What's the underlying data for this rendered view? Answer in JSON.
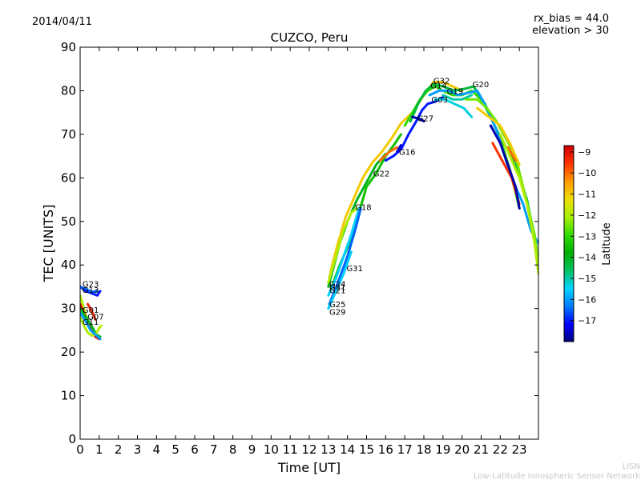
{
  "header": {
    "date": "2014/04/11",
    "rx_bias": "rx_bias = 44.0",
    "elevation": "elevation > 30"
  },
  "footer": {
    "org_short": "LISN",
    "org_long": "Low-Latitude Ionospheric Sensor Network"
  },
  "chart_data": {
    "type": "scatter",
    "title": "CUZCO, Peru",
    "xlabel": "Time [UT]",
    "ylabel": "TEC [UNITS]",
    "xlim": [
      0,
      24
    ],
    "ylim": [
      0,
      90
    ],
    "xticks": [
      "0",
      "1",
      "2",
      "3",
      "4",
      "5",
      "6",
      "7",
      "8",
      "9",
      "10",
      "11",
      "12",
      "13",
      "14",
      "15",
      "16",
      "17",
      "18",
      "19",
      "20",
      "21",
      "22",
      "23"
    ],
    "yticks": [
      "0",
      "10",
      "20",
      "30",
      "40",
      "50",
      "60",
      "70",
      "80",
      "90"
    ],
    "colorbar": {
      "label": "Latitude",
      "range": [
        -18,
        -8.7
      ],
      "ticks": [
        "−9",
        "−10",
        "−11",
        "−12",
        "−13",
        "−14",
        "−15",
        "−16",
        "−17"
      ],
      "colors": [
        "#00007f",
        "#0000ff",
        "#007fff",
        "#00d4ff",
        "#00c060",
        "#00b000",
        "#33dd00",
        "#aaee00",
        "#eedd00",
        "#ff9900",
        "#ff3300",
        "#cc0000"
      ]
    },
    "tracks": [
      {
        "points": [
          [
            0.0,
            35
          ],
          [
            0.3,
            34
          ],
          [
            0.6,
            33.5
          ],
          [
            0.9,
            33
          ],
          [
            1.05,
            34
          ]
        ],
        "lat": -17
      },
      {
        "points": [
          [
            0.0,
            35
          ],
          [
            0.3,
            34.5
          ],
          [
            0.6,
            33.8
          ],
          [
            0.9,
            34
          ]
        ],
        "lat": -16.5
      },
      {
        "points": [
          [
            0.0,
            33
          ],
          [
            0.2,
            30
          ],
          [
            0.4,
            27
          ],
          [
            0.6,
            25
          ],
          [
            0.8,
            24
          ],
          [
            1.0,
            23.5
          ]
        ],
        "lat": -12
      },
      {
        "points": [
          [
            0.0,
            31
          ],
          [
            0.2,
            29
          ],
          [
            0.4,
            27
          ],
          [
            0.6,
            25
          ],
          [
            0.8,
            23.5
          ],
          [
            1.0,
            23
          ]
        ],
        "lat": -9
      },
      {
        "points": [
          [
            0.0,
            30
          ],
          [
            0.3,
            28
          ],
          [
            0.6,
            26
          ],
          [
            0.85,
            24
          ],
          [
            1.05,
            23.5
          ]
        ],
        "lat": -14
      },
      {
        "points": [
          [
            0.0,
            28
          ],
          [
            0.2,
            26
          ],
          [
            0.4,
            24.5
          ],
          [
            0.6,
            23.8
          ],
          [
            0.8,
            24
          ],
          [
            1.0,
            25.5
          ],
          [
            1.1,
            26
          ]
        ],
        "lat": -12
      },
      {
        "points": [
          [
            0.0,
            29
          ],
          [
            0.3,
            27
          ],
          [
            0.55,
            25
          ],
          [
            0.8,
            24
          ],
          [
            1.05,
            23
          ]
        ],
        "lat": -16
      },
      {
        "points": [
          [
            0.4,
            31
          ],
          [
            0.6,
            29.5
          ],
          [
            0.8,
            27.5
          ]
        ],
        "lat": -9.3
      },
      {
        "points": [
          [
            13.05,
            37
          ],
          [
            13.2,
            40
          ],
          [
            13.5,
            45
          ],
          [
            13.9,
            51
          ],
          [
            14.3,
            55
          ],
          [
            14.8,
            60
          ],
          [
            15.3,
            63.5
          ],
          [
            15.8,
            66
          ],
          [
            16.3,
            69
          ],
          [
            16.8,
            72.5
          ],
          [
            17.4,
            75
          ],
          [
            18.0,
            79
          ],
          [
            18.5,
            82
          ],
          [
            19.0,
            82
          ],
          [
            19.5,
            81
          ],
          [
            20.0,
            80
          ]
        ],
        "lat": -11
      },
      {
        "points": [
          [
            13.0,
            35
          ],
          [
            13.3,
            40
          ],
          [
            13.6,
            45
          ],
          [
            14.0,
            50
          ],
          [
            14.5,
            55
          ],
          [
            15.0,
            59
          ],
          [
            15.5,
            63
          ],
          [
            16.0,
            65.5
          ]
        ],
        "lat": -14
      },
      {
        "points": [
          [
            13.0,
            36
          ],
          [
            13.4,
            42
          ],
          [
            13.8,
            48
          ],
          [
            14.2,
            52
          ],
          [
            14.5,
            53
          ]
        ],
        "lat": -12
      },
      {
        "points": [
          [
            13.1,
            34
          ],
          [
            13.6,
            40
          ],
          [
            14.1,
            45
          ],
          [
            14.6,
            52
          ],
          [
            15.0,
            58
          ],
          [
            15.5,
            61
          ],
          [
            16.0,
            65
          ],
          [
            16.5,
            68
          ],
          [
            16.8,
            70
          ]
        ],
        "lat": -13.5
      },
      {
        "points": [
          [
            13.0,
            33
          ],
          [
            13.4,
            37
          ],
          [
            13.8,
            42
          ],
          [
            14.2,
            47
          ],
          [
            14.6,
            53
          ]
        ],
        "lat": -15.5
      },
      {
        "points": [
          [
            13.05,
            31
          ],
          [
            13.5,
            36
          ],
          [
            14.0,
            42
          ],
          [
            14.4,
            48
          ],
          [
            14.7,
            53
          ]
        ],
        "lat": -16.5
      },
      {
        "points": [
          [
            13.0,
            30
          ],
          [
            13.4,
            34
          ],
          [
            13.8,
            38
          ],
          [
            14.2,
            43
          ]
        ],
        "lat": -15.5
      },
      {
        "points": [
          [
            15.7,
            64
          ],
          [
            16.2,
            66
          ],
          [
            16.6,
            67
          ]
        ],
        "lat": -10
      },
      {
        "points": [
          [
            16.0,
            64
          ],
          [
            16.4,
            65
          ],
          [
            16.8,
            66.5
          ],
          [
            17.2,
            70
          ],
          [
            17.6,
            73
          ],
          [
            17.9,
            75.5
          ],
          [
            18.2,
            77
          ],
          [
            18.6,
            77.5
          ],
          [
            19.0,
            78.5
          ]
        ],
        "lat": -17
      },
      {
        "points": [
          [
            17.0,
            72
          ],
          [
            17.4,
            75
          ],
          [
            17.8,
            78
          ],
          [
            18.2,
            80
          ],
          [
            18.6,
            81
          ],
          [
            19.0,
            80
          ],
          [
            19.5,
            79
          ],
          [
            20.0,
            79
          ],
          [
            20.5,
            80
          ],
          [
            21.0,
            78
          ],
          [
            21.5,
            74
          ],
          [
            22.0,
            69
          ],
          [
            22.5,
            62
          ],
          [
            23.0,
            53
          ]
        ],
        "lat": -13
      },
      {
        "points": [
          [
            17.3,
            73
          ],
          [
            17.7,
            77
          ],
          [
            18.1,
            80
          ],
          [
            18.5,
            81.5
          ],
          [
            19.0,
            81
          ],
          [
            19.6,
            80
          ],
          [
            20.2,
            80.5
          ],
          [
            20.6,
            81
          ],
          [
            21.2,
            77
          ],
          [
            21.7,
            72
          ],
          [
            22.3,
            67
          ],
          [
            22.8,
            63
          ],
          [
            23.4,
            55
          ],
          [
            23.9,
            44
          ]
        ],
        "lat": -14.3
      },
      {
        "points": [
          [
            18.3,
            79
          ],
          [
            18.8,
            80
          ],
          [
            19.3,
            80
          ],
          [
            19.8,
            79
          ],
          [
            20.3,
            79.5
          ],
          [
            20.8,
            80
          ],
          [
            21.3,
            76
          ],
          [
            21.8,
            71
          ],
          [
            22.3,
            64
          ],
          [
            22.8,
            58
          ],
          [
            23.2,
            54
          ],
          [
            23.6,
            48
          ],
          [
            24.0,
            45
          ]
        ],
        "lat": -16
      },
      {
        "points": [
          [
            18.6,
            78
          ],
          [
            19.1,
            78
          ],
          [
            19.6,
            77
          ],
          [
            20.1,
            76
          ],
          [
            20.5,
            74
          ]
        ],
        "lat": -15.3
      },
      {
        "points": [
          [
            19.0,
            79
          ],
          [
            19.5,
            78
          ],
          [
            20.0,
            78
          ],
          [
            20.5,
            79
          ]
        ],
        "lat": -15
      },
      {
        "points": [
          [
            20.2,
            78
          ],
          [
            20.8,
            78
          ],
          [
            21.3,
            76
          ],
          [
            21.8,
            73
          ],
          [
            22.3,
            69
          ],
          [
            22.8,
            65
          ],
          [
            23.3,
            56
          ],
          [
            23.8,
            47
          ],
          [
            24.0,
            40
          ]
        ],
        "lat": -12.5
      },
      {
        "points": [
          [
            20.8,
            76
          ],
          [
            21.4,
            74
          ],
          [
            22.0,
            72
          ],
          [
            22.5,
            68
          ],
          [
            23.0,
            63
          ]
        ],
        "lat": -11
      },
      {
        "points": [
          [
            21.6,
            68
          ],
          [
            22.1,
            64
          ],
          [
            22.6,
            60
          ],
          [
            23.0,
            54
          ]
        ],
        "lat": -9.5
      },
      {
        "points": [
          [
            22.4,
            67
          ],
          [
            22.8,
            64
          ]
        ],
        "lat": -10
      },
      {
        "points": [
          [
            21.5,
            72
          ],
          [
            22.0,
            68
          ],
          [
            22.4,
            63
          ],
          [
            22.8,
            58
          ],
          [
            23.0,
            53
          ]
        ],
        "lat": -17.7
      },
      {
        "points": [
          [
            22.0,
            70
          ],
          [
            22.5,
            65
          ],
          [
            23.0,
            60
          ],
          [
            23.4,
            54
          ],
          [
            23.8,
            45
          ],
          [
            24.0,
            38
          ]
        ],
        "lat": -12
      },
      {
        "points": [
          [
            17.4,
            74
          ],
          [
            17.8,
            73.5
          ],
          [
            18.0,
            73
          ]
        ],
        "lat": -17.7
      },
      {
        "points": [
          [
            16.6,
            66
          ],
          [
            16.8,
            67.5
          ]
        ],
        "lat": -17.5
      }
    ],
    "labels": [
      {
        "text": "G23",
        "x": 0.12,
        "y": 35.0
      },
      {
        "text": "G13",
        "x": 0.12,
        "y": 33.6
      },
      {
        "text": "G01",
        "x": 0.12,
        "y": 29.0
      },
      {
        "text": "G07",
        "x": 0.38,
        "y": 27.5
      },
      {
        "text": "G11",
        "x": 0.12,
        "y": 26.3
      },
      {
        "text": "G24",
        "x": 13.05,
        "y": 35.0
      },
      {
        "text": "G21",
        "x": 13.05,
        "y": 33.5
      },
      {
        "text": "G31",
        "x": 13.05,
        "y": 34.3
      },
      {
        "text": "G25",
        "x": 13.05,
        "y": 30.3
      },
      {
        "text": "G29",
        "x": 13.05,
        "y": 28.6
      },
      {
        "text": "G31",
        "x": 13.95,
        "y": 38.6
      },
      {
        "text": "G18",
        "x": 14.4,
        "y": 52.6
      },
      {
        "text": "G22",
        "x": 15.35,
        "y": 60.3
      },
      {
        "text": "G16",
        "x": 16.7,
        "y": 65.3
      },
      {
        "text": "G27",
        "x": 17.65,
        "y": 73.0
      },
      {
        "text": "G03",
        "x": 18.4,
        "y": 77.3
      },
      {
        "text": "G14",
        "x": 18.35,
        "y": 80.5
      },
      {
        "text": "G32",
        "x": 18.5,
        "y": 81.6
      },
      {
        "text": "G19",
        "x": 19.2,
        "y": 79.3
      },
      {
        "text": "G20",
        "x": 20.55,
        "y": 80.8
      }
    ]
  }
}
